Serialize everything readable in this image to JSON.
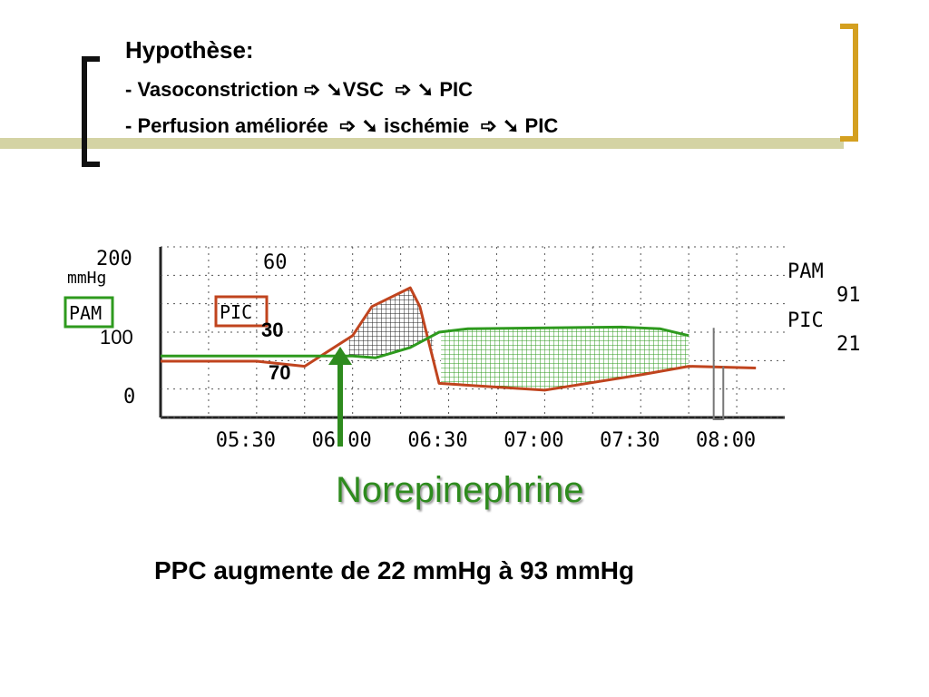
{
  "header": {
    "title": "Hypothèse:",
    "line1": "- Vasoconstriction ➩ ➘VSC  ➩ ➘ PIC",
    "line2": "- Perfusion améliorée  ➩ ➘ ischémie  ➩ ➘ PIC"
  },
  "chart_data": {
    "type": "line",
    "x_tick_labels": [
      "05:30",
      "06:00",
      "06:30",
      "07:00",
      "07:30",
      "08:00"
    ],
    "y_tick_labels": [
      "200",
      "0"
    ],
    "y_unit": "mmHg",
    "pic_scale_label": "60",
    "left_labels": {
      "pam": "PAM",
      "pic": "PIC"
    },
    "right_legend": [
      {
        "name": "PAM",
        "value": "91"
      },
      {
        "name": "PIC",
        "value": "21"
      }
    ],
    "annotations": {
      "pam_level": "100",
      "pic_peak": "30",
      "pam_low": "70"
    },
    "series": [
      {
        "name": "PAM",
        "color": "#2e9a1e",
        "points": [
          [
            5.0,
            72
          ],
          [
            6.0,
            72
          ],
          [
            6.12,
            70
          ],
          [
            6.3,
            82
          ],
          [
            6.45,
            100
          ],
          [
            6.6,
            104
          ],
          [
            7.4,
            106
          ],
          [
            7.6,
            104
          ],
          [
            7.75,
            96
          ]
        ]
      },
      {
        "name": "PIC",
        "color": "#c0441e",
        "points": [
          [
            5.0,
            66
          ],
          [
            5.5,
            66
          ],
          [
            5.75,
            60
          ],
          [
            6.0,
            96
          ],
          [
            6.1,
            130
          ],
          [
            6.3,
            152
          ],
          [
            6.35,
            130
          ],
          [
            6.45,
            40
          ],
          [
            7.0,
            32
          ],
          [
            7.5,
            50
          ],
          [
            7.75,
            60
          ],
          [
            8.1,
            58
          ]
        ]
      }
    ],
    "grid": true
  },
  "annotation_text": "Norepinephrine",
  "conclusion": "PPC augmente de 22 mmHg à 93 mmHg",
  "colors": {
    "accent_gold": "#d4a020",
    "green": "#2e8b1e",
    "orange": "#c0441e"
  }
}
